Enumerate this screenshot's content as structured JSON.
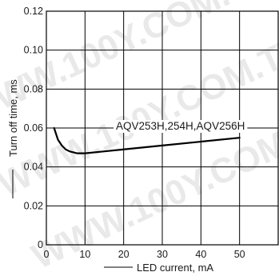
{
  "watermark": "WWW.100Y.COM.TW",
  "chart_data": {
    "type": "line",
    "xlabel": "LED current, mA",
    "ylabel": "Turn off time, ms",
    "xlim": [
      0,
      60
    ],
    "ylim": [
      0,
      0.12
    ],
    "x_ticks": [
      "0",
      "10",
      "20",
      "30",
      "40",
      "50"
    ],
    "y_ticks": [
      "0",
      "0.02",
      "0.04",
      "0.06",
      "0.08",
      "0.10",
      "0.12"
    ],
    "grid": true,
    "series": [
      {
        "name": "AQV253H,254H,AQV256H",
        "x": [
          2,
          3,
          4,
          5,
          6,
          8,
          10,
          20,
          30,
          40,
          50
        ],
        "y": [
          0.06,
          0.054,
          0.051,
          0.049,
          0.048,
          0.047,
          0.047,
          0.049,
          0.051,
          0.053,
          0.055
        ]
      }
    ]
  }
}
